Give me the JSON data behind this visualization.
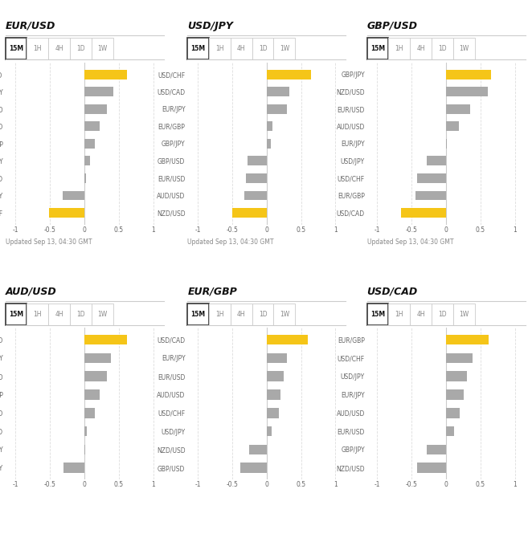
{
  "panels": [
    {
      "title": "EUR/USD",
      "row": 0,
      "col": 0,
      "labels": [
        "AUD/USD",
        "EUR/JPY",
        "NZD/USD",
        "GBP/USD",
        "EUR/GBP",
        "GBP/JPY",
        "USD/CAD",
        "USD/JPY",
        "USD/CHF"
      ],
      "values": [
        0.62,
        0.42,
        0.32,
        0.22,
        0.15,
        0.08,
        0.02,
        -0.32,
        -0.52
      ],
      "colors": [
        "#F5C518",
        "#A9A9A9",
        "#A9A9A9",
        "#A9A9A9",
        "#A9A9A9",
        "#A9A9A9",
        "#A9A9A9",
        "#A9A9A9",
        "#F5C518"
      ]
    },
    {
      "title": "USD/JPY",
      "row": 0,
      "col": 1,
      "labels": [
        "USD/CHF",
        "USD/CAD",
        "EUR/JPY",
        "EUR/GBP",
        "GBP/JPY",
        "GBP/USD",
        "EUR/USD",
        "AUD/USD",
        "NZD/USD"
      ],
      "values": [
        0.65,
        0.33,
        0.3,
        0.08,
        0.06,
        -0.28,
        -0.3,
        -0.32,
        -0.5
      ],
      "colors": [
        "#F5C518",
        "#A9A9A9",
        "#A9A9A9",
        "#A9A9A9",
        "#A9A9A9",
        "#A9A9A9",
        "#A9A9A9",
        "#A9A9A9",
        "#F5C518"
      ]
    },
    {
      "title": "GBP/USD",
      "row": 0,
      "col": 2,
      "labels": [
        "GBP/JPY",
        "NZD/USD",
        "EUR/USD",
        "AUD/USD",
        "EUR/JPY",
        "USD/JPY",
        "USD/CHF",
        "EUR/GBP",
        "USD/CAD"
      ],
      "values": [
        0.65,
        0.6,
        0.35,
        0.18,
        0.01,
        -0.28,
        -0.42,
        -0.44,
        -0.65
      ],
      "colors": [
        "#F5C518",
        "#A9A9A9",
        "#A9A9A9",
        "#A9A9A9",
        "#A9A9A9",
        "#A9A9A9",
        "#A9A9A9",
        "#A9A9A9",
        "#F5C518"
      ]
    },
    {
      "title": "AUD/USD",
      "row": 1,
      "col": 0,
      "labels": [
        "EUR/USD",
        "EUR/JPY",
        "NZD/USD",
        "EUR/GBP",
        "GBP/USD",
        "USD/CAD",
        "GBP/JPY",
        "USD/JPY"
      ],
      "values": [
        0.62,
        0.38,
        0.32,
        0.22,
        0.15,
        0.03,
        0.01,
        -0.3
      ],
      "colors": [
        "#F5C518",
        "#A9A9A9",
        "#A9A9A9",
        "#A9A9A9",
        "#A9A9A9",
        "#A9A9A9",
        "#A9A9A9",
        "#A9A9A9"
      ]
    },
    {
      "title": "EUR/GBP",
      "row": 1,
      "col": 1,
      "labels": [
        "USD/CAD",
        "EUR/JPY",
        "EUR/USD",
        "AUD/USD",
        "USD/CHF",
        "USD/JPY",
        "NZD/USD",
        "GBP/USD"
      ],
      "values": [
        0.6,
        0.3,
        0.25,
        0.2,
        0.18,
        0.07,
        -0.25,
        -0.38
      ],
      "colors": [
        "#F5C518",
        "#A9A9A9",
        "#A9A9A9",
        "#A9A9A9",
        "#A9A9A9",
        "#A9A9A9",
        "#A9A9A9",
        "#A9A9A9"
      ]
    },
    {
      "title": "USD/CAD",
      "row": 1,
      "col": 2,
      "labels": [
        "EUR/GBP",
        "USD/CHF",
        "USD/JPY",
        "EUR/JPY",
        "AUD/USD",
        "EUR/USD",
        "GBP/JPY",
        "NZD/USD"
      ],
      "values": [
        0.62,
        0.38,
        0.3,
        0.25,
        0.2,
        0.12,
        -0.28,
        -0.42
      ],
      "colors": [
        "#F5C518",
        "#A9A9A9",
        "#A9A9A9",
        "#A9A9A9",
        "#A9A9A9",
        "#A9A9A9",
        "#A9A9A9",
        "#A9A9A9"
      ]
    }
  ],
  "tab_labels": [
    "15M",
    "1H",
    "4H",
    "1D",
    "1W"
  ],
  "update_text": "Updated Sep 13, 04:30 GMT",
  "background_color": "#FFFFFF",
  "bar_gray": "#A9A9A9",
  "bar_gold": "#F5C518",
  "title_color": "#111111",
  "label_color": "#666666",
  "grid_color": "#DDDDDD",
  "xlim": [
    -1.15,
    1.15
  ],
  "xticks": [
    -1,
    -0.5,
    0,
    0.5,
    1
  ],
  "xtick_labels": [
    "-1",
    "-0.5",
    "0",
    "0.5",
    "1"
  ]
}
